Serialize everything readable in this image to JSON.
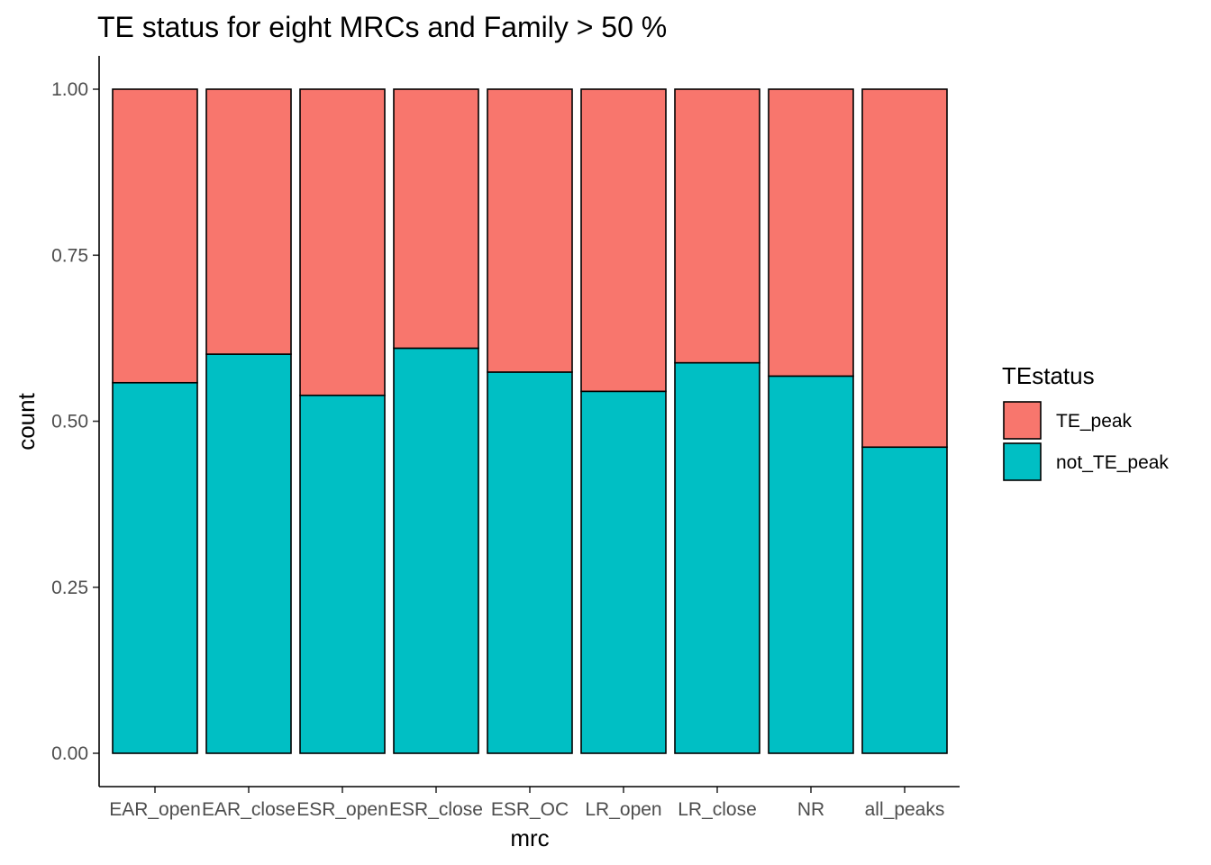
{
  "chart_data": {
    "type": "bar",
    "stacked": true,
    "title": "TE status for eight MRCs and Family > 50 %",
    "xlabel": "mrc",
    "ylabel": "count",
    "ylim": [
      0,
      1.0
    ],
    "yticks": [
      "0.00",
      "0.25",
      "0.50",
      "0.75",
      "1.00"
    ],
    "grid": false,
    "legend_position": "right",
    "legend_title": "TEstatus",
    "categories": [
      "EAR_open",
      "EAR_close",
      "ESR_open",
      "ESR_close",
      "ESR_OC",
      "LR_open",
      "LR_close",
      "NR",
      "all_peaks"
    ],
    "series": [
      {
        "name": "TE_peak",
        "color": "#F8766D",
        "values": [
          0.442,
          0.399,
          0.461,
          0.39,
          0.426,
          0.455,
          0.412,
          0.432,
          0.539
        ]
      },
      {
        "name": "not_TE_peak",
        "color": "#00BFC4",
        "values": [
          0.558,
          0.601,
          0.539,
          0.61,
          0.574,
          0.545,
          0.588,
          0.568,
          0.461
        ]
      }
    ]
  }
}
